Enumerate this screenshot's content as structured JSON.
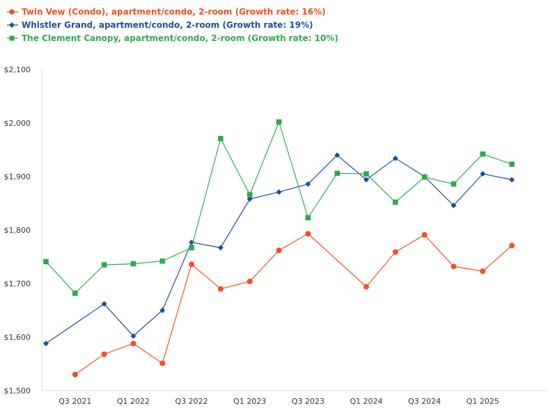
{
  "chart_data": {
    "type": "line",
    "title": "",
    "xlabel": "",
    "ylabel": "",
    "ylim": [
      1500,
      2100
    ],
    "yticks": [
      1500,
      1600,
      1700,
      1800,
      1900,
      2000,
      2100
    ],
    "ytick_labels": [
      "$1,500",
      "$1,600",
      "$1,700",
      "$1,800",
      "$1,900",
      "$2,000",
      "$2,100"
    ],
    "xlim": [
      2021.25,
      2025.5
    ],
    "xticks": [
      2021.5,
      2022.0,
      2022.5,
      2023.0,
      2023.5,
      2024.0,
      2024.5,
      2025.0
    ],
    "xtick_labels": [
      "Q3 2021",
      "Q1 2022",
      "Q3 2022",
      "Q1 2023",
      "Q3 2023",
      "Q1 2024",
      "Q3 2024",
      "Q1 2025"
    ],
    "grid": false,
    "legend_position": "top-left",
    "series": [
      {
        "name": "Twin Vew (Condo), apartment/condo, 2-room (Growth rate: 16%)",
        "color": "#f4511e",
        "marker": "circle",
        "x": [
          2021.5,
          2021.75,
          2022.0,
          2022.25,
          2022.5,
          2022.75,
          2023.0,
          2023.25,
          2023.5,
          2024.0,
          2024.25,
          2024.5,
          2024.75,
          2025.0,
          2025.25
        ],
        "y": [
          1530,
          1568,
          1588,
          1551,
          1736,
          1690,
          1704,
          1762,
          1793,
          1694,
          1759,
          1791,
          1732,
          1723,
          1771
        ]
      },
      {
        "name": "Whistler Grand, apartment/condo, 2-room (Growth rate: 19%)",
        "color": "#1a4fa0",
        "marker": "diamond",
        "x": [
          2021.25,
          2021.75,
          2022.0,
          2022.25,
          2022.5,
          2022.75,
          2023.0,
          2023.25,
          2023.5,
          2023.75,
          2024.0,
          2024.25,
          2024.5,
          2024.75,
          2025.0,
          2025.25
        ],
        "y": [
          1588,
          1662,
          1602,
          1650,
          1777,
          1767,
          1858,
          1871,
          1886,
          1940,
          1894,
          1934,
          1900,
          1846,
          1905,
          1894
        ]
      },
      {
        "name": "The Clement Canopy, apartment/condo, 2-room (Growth rate: 10%)",
        "color": "#2eaa4f",
        "marker": "square",
        "x": [
          2021.25,
          2021.5,
          2021.75,
          2022.0,
          2022.25,
          2022.5,
          2022.75,
          2023.0,
          2023.25,
          2023.5,
          2023.75,
          2024.0,
          2024.25,
          2024.5,
          2024.75,
          2025.0,
          2025.25
        ],
        "y": [
          1741,
          1682,
          1735,
          1737,
          1742,
          1767,
          1971,
          1866,
          2002,
          1823,
          1906,
          1905,
          1852,
          1899,
          1886,
          1942,
          1923
        ]
      }
    ]
  }
}
